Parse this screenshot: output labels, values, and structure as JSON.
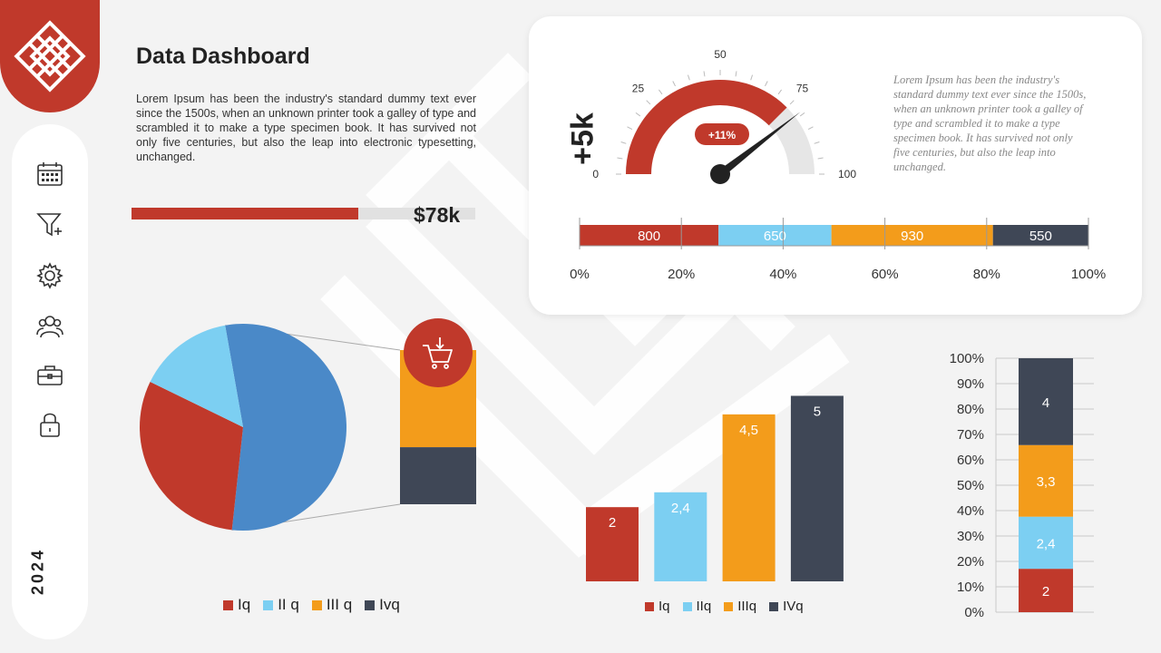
{
  "page_title": "Data Dashboard",
  "intro_text": "Lorem Ipsum has been the industry's standard dummy text ever since the 1500s, when an unknown printer took a galley of type and scrambled it to make a type specimen book. It has survived not only five centuries, but also the leap into electronic typesetting, unchanged.",
  "year": "2024",
  "sidebar": {
    "items": [
      {
        "icon": "calendar-icon"
      },
      {
        "icon": "funnel-plus-icon"
      },
      {
        "icon": "gear-icon"
      },
      {
        "icon": "users-icon"
      },
      {
        "icon": "toolbox-icon"
      },
      {
        "icon": "lock-icon"
      }
    ]
  },
  "progress": {
    "value_label": "$78k",
    "fraction": 0.66
  },
  "gauge_card": {
    "kpi_value": "+5k",
    "badge": "+11%",
    "description": "Lorem Ipsum has been the industry's standard dummy text ever since the 1500s, when an unknown printer took a galley of type and scrambled it to make a type specimen book. It has survived not only five centuries, but also the leap into unchanged."
  },
  "colors": {
    "red": "#c0392b",
    "light_blue": "#7ccff2",
    "orange": "#f39c1b",
    "dark": "#3f4756",
    "blue": "#4a89c8"
  },
  "chart_data": [
    {
      "type": "gauge",
      "min": 0,
      "max": 100,
      "ticks": [
        "0",
        "25",
        "50",
        "75",
        "100"
      ],
      "value": 75,
      "badge": "+11%"
    },
    {
      "type": "bar",
      "orientation": "horizontal-stacked",
      "series": [
        {
          "label": "800",
          "value": 800,
          "color": "#c0392b"
        },
        {
          "label": "650",
          "value": 650,
          "color": "#7ccff2"
        },
        {
          "label": "930",
          "value": 930,
          "color": "#f39c1b"
        },
        {
          "label": "550",
          "value": 550,
          "color": "#3f4756"
        }
      ],
      "x_ticks": [
        "0%",
        "20%",
        "40%",
        "60%",
        "80%",
        "100%"
      ]
    },
    {
      "type": "pie",
      "legend": [
        {
          "label": "Iq",
          "color": "#c0392b"
        },
        {
          "label": "II q",
          "color": "#7ccff2"
        },
        {
          "label": "III q",
          "color": "#f39c1b"
        },
        {
          "label": "Ivq",
          "color": "#3f4756"
        }
      ],
      "slices": [
        {
          "value": 54.5,
          "color": "#4a89c8"
        },
        {
          "value": 30.5,
          "color": "#c0392b"
        },
        {
          "value": 15,
          "color": "#7ccff2"
        }
      ],
      "breakout_segments": [
        {
          "value": 63,
          "color": "#f39c1b"
        },
        {
          "value": 37,
          "color": "#3f4756"
        }
      ],
      "breakout_icon": "shopping-cart-icon"
    },
    {
      "type": "bar",
      "categories": [
        "Iq",
        "IIq",
        "IIIq",
        "IVq"
      ],
      "values": [
        2,
        2.4,
        4.5,
        5
      ],
      "labels": [
        "2",
        "2,4",
        "4,5",
        "5"
      ],
      "colors": [
        "#c0392b",
        "#7ccff2",
        "#f39c1b",
        "#3f4756"
      ],
      "ylim": [
        0,
        5.5
      ]
    },
    {
      "type": "bar",
      "orientation": "vertical-stacked-100",
      "segments": [
        {
          "value": 2,
          "label": "2",
          "color": "#c0392b"
        },
        {
          "value": 2.4,
          "label": "2,4",
          "color": "#7ccff2"
        },
        {
          "value": 3.3,
          "label": "3,3",
          "color": "#f39c1b"
        },
        {
          "value": 4,
          "label": "4",
          "color": "#3f4756"
        }
      ],
      "y_ticks": [
        "0%",
        "10%",
        "20%",
        "30%",
        "40%",
        "50%",
        "60%",
        "70%",
        "80%",
        "90%",
        "100%"
      ]
    }
  ]
}
